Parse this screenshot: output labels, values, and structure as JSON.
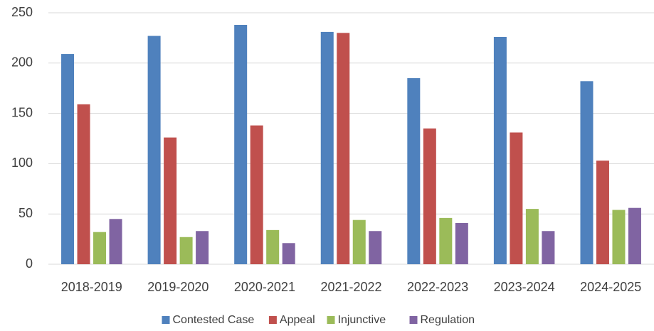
{
  "chart_data": {
    "type": "bar",
    "categories": [
      "2018-2019",
      "2019-2020",
      "2020-2021",
      "2021-2022",
      "2022-2023",
      "2023-2024",
      "2024-2025"
    ],
    "series": [
      {
        "name": "Contested Case",
        "color": "#4f81bd",
        "values": [
          209,
          227,
          238,
          231,
          185,
          226,
          182
        ]
      },
      {
        "name": "Appeal",
        "color": "#c0504d",
        "values": [
          159,
          126,
          138,
          230,
          135,
          131,
          103
        ]
      },
      {
        "name": "Injunctive",
        "color": "#9bbb59",
        "values": [
          32,
          27,
          34,
          44,
          46,
          55,
          54
        ]
      },
      {
        "name": "Regulation",
        "color": "#8064a2",
        "values": [
          45,
          33,
          21,
          33,
          41,
          33,
          56
        ]
      }
    ],
    "ylim": [
      0,
      250
    ],
    "yticks": [
      0,
      50,
      100,
      150,
      200,
      250
    ],
    "grid": true,
    "legend": "bottom"
  }
}
